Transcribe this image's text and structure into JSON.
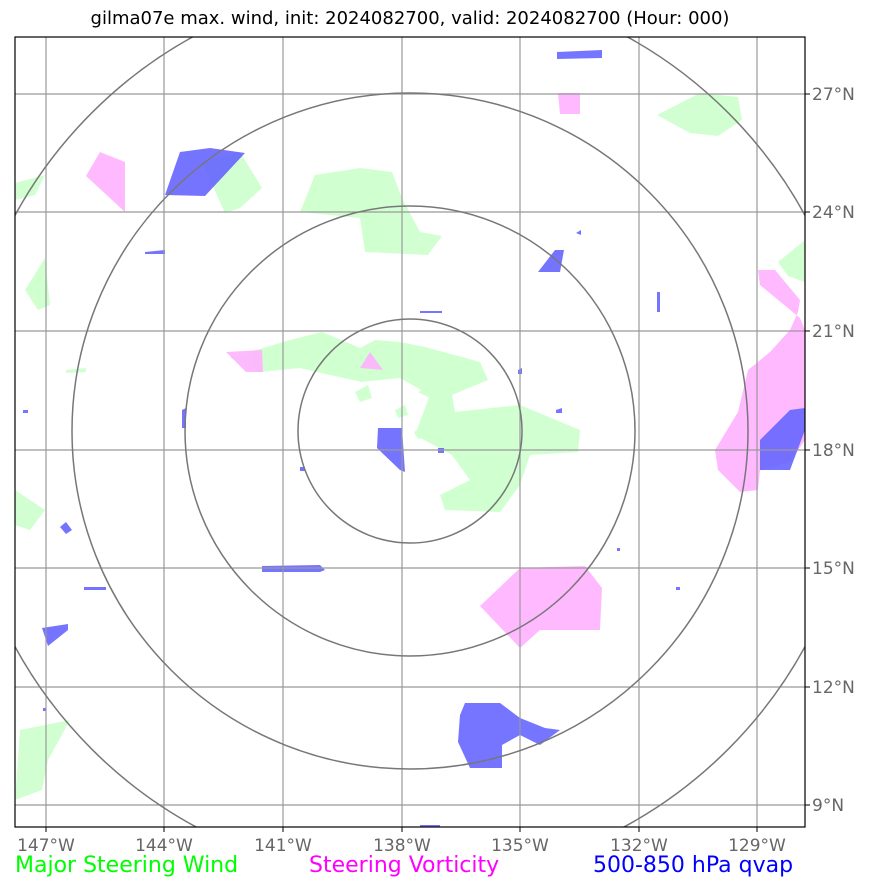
{
  "title": "gilma07e max. wind, init: 2024082700, valid: 2024082700 (Hour: 000)",
  "map": {
    "lat_labels": [
      "27°N",
      "24°N",
      "21°N",
      "18°N",
      "15°N",
      "12°N",
      "9°N"
    ],
    "lon_labels": [
      "147°W",
      "144°W",
      "141°W",
      "138°W",
      "135°W",
      "132°W",
      "129°W"
    ],
    "range_rings": 4,
    "colors": {
      "steering_wind": "#ccffcc",
      "steering_vorticity": "#ffb3ff",
      "qvap": "#6666ff",
      "grid": "#999999",
      "rings": "#777777"
    }
  },
  "legend": {
    "steering_wind": "Major Steering Wind",
    "steering_vorticity": "Steering Vorticity",
    "qvap": "500-850 hPa qvap"
  }
}
